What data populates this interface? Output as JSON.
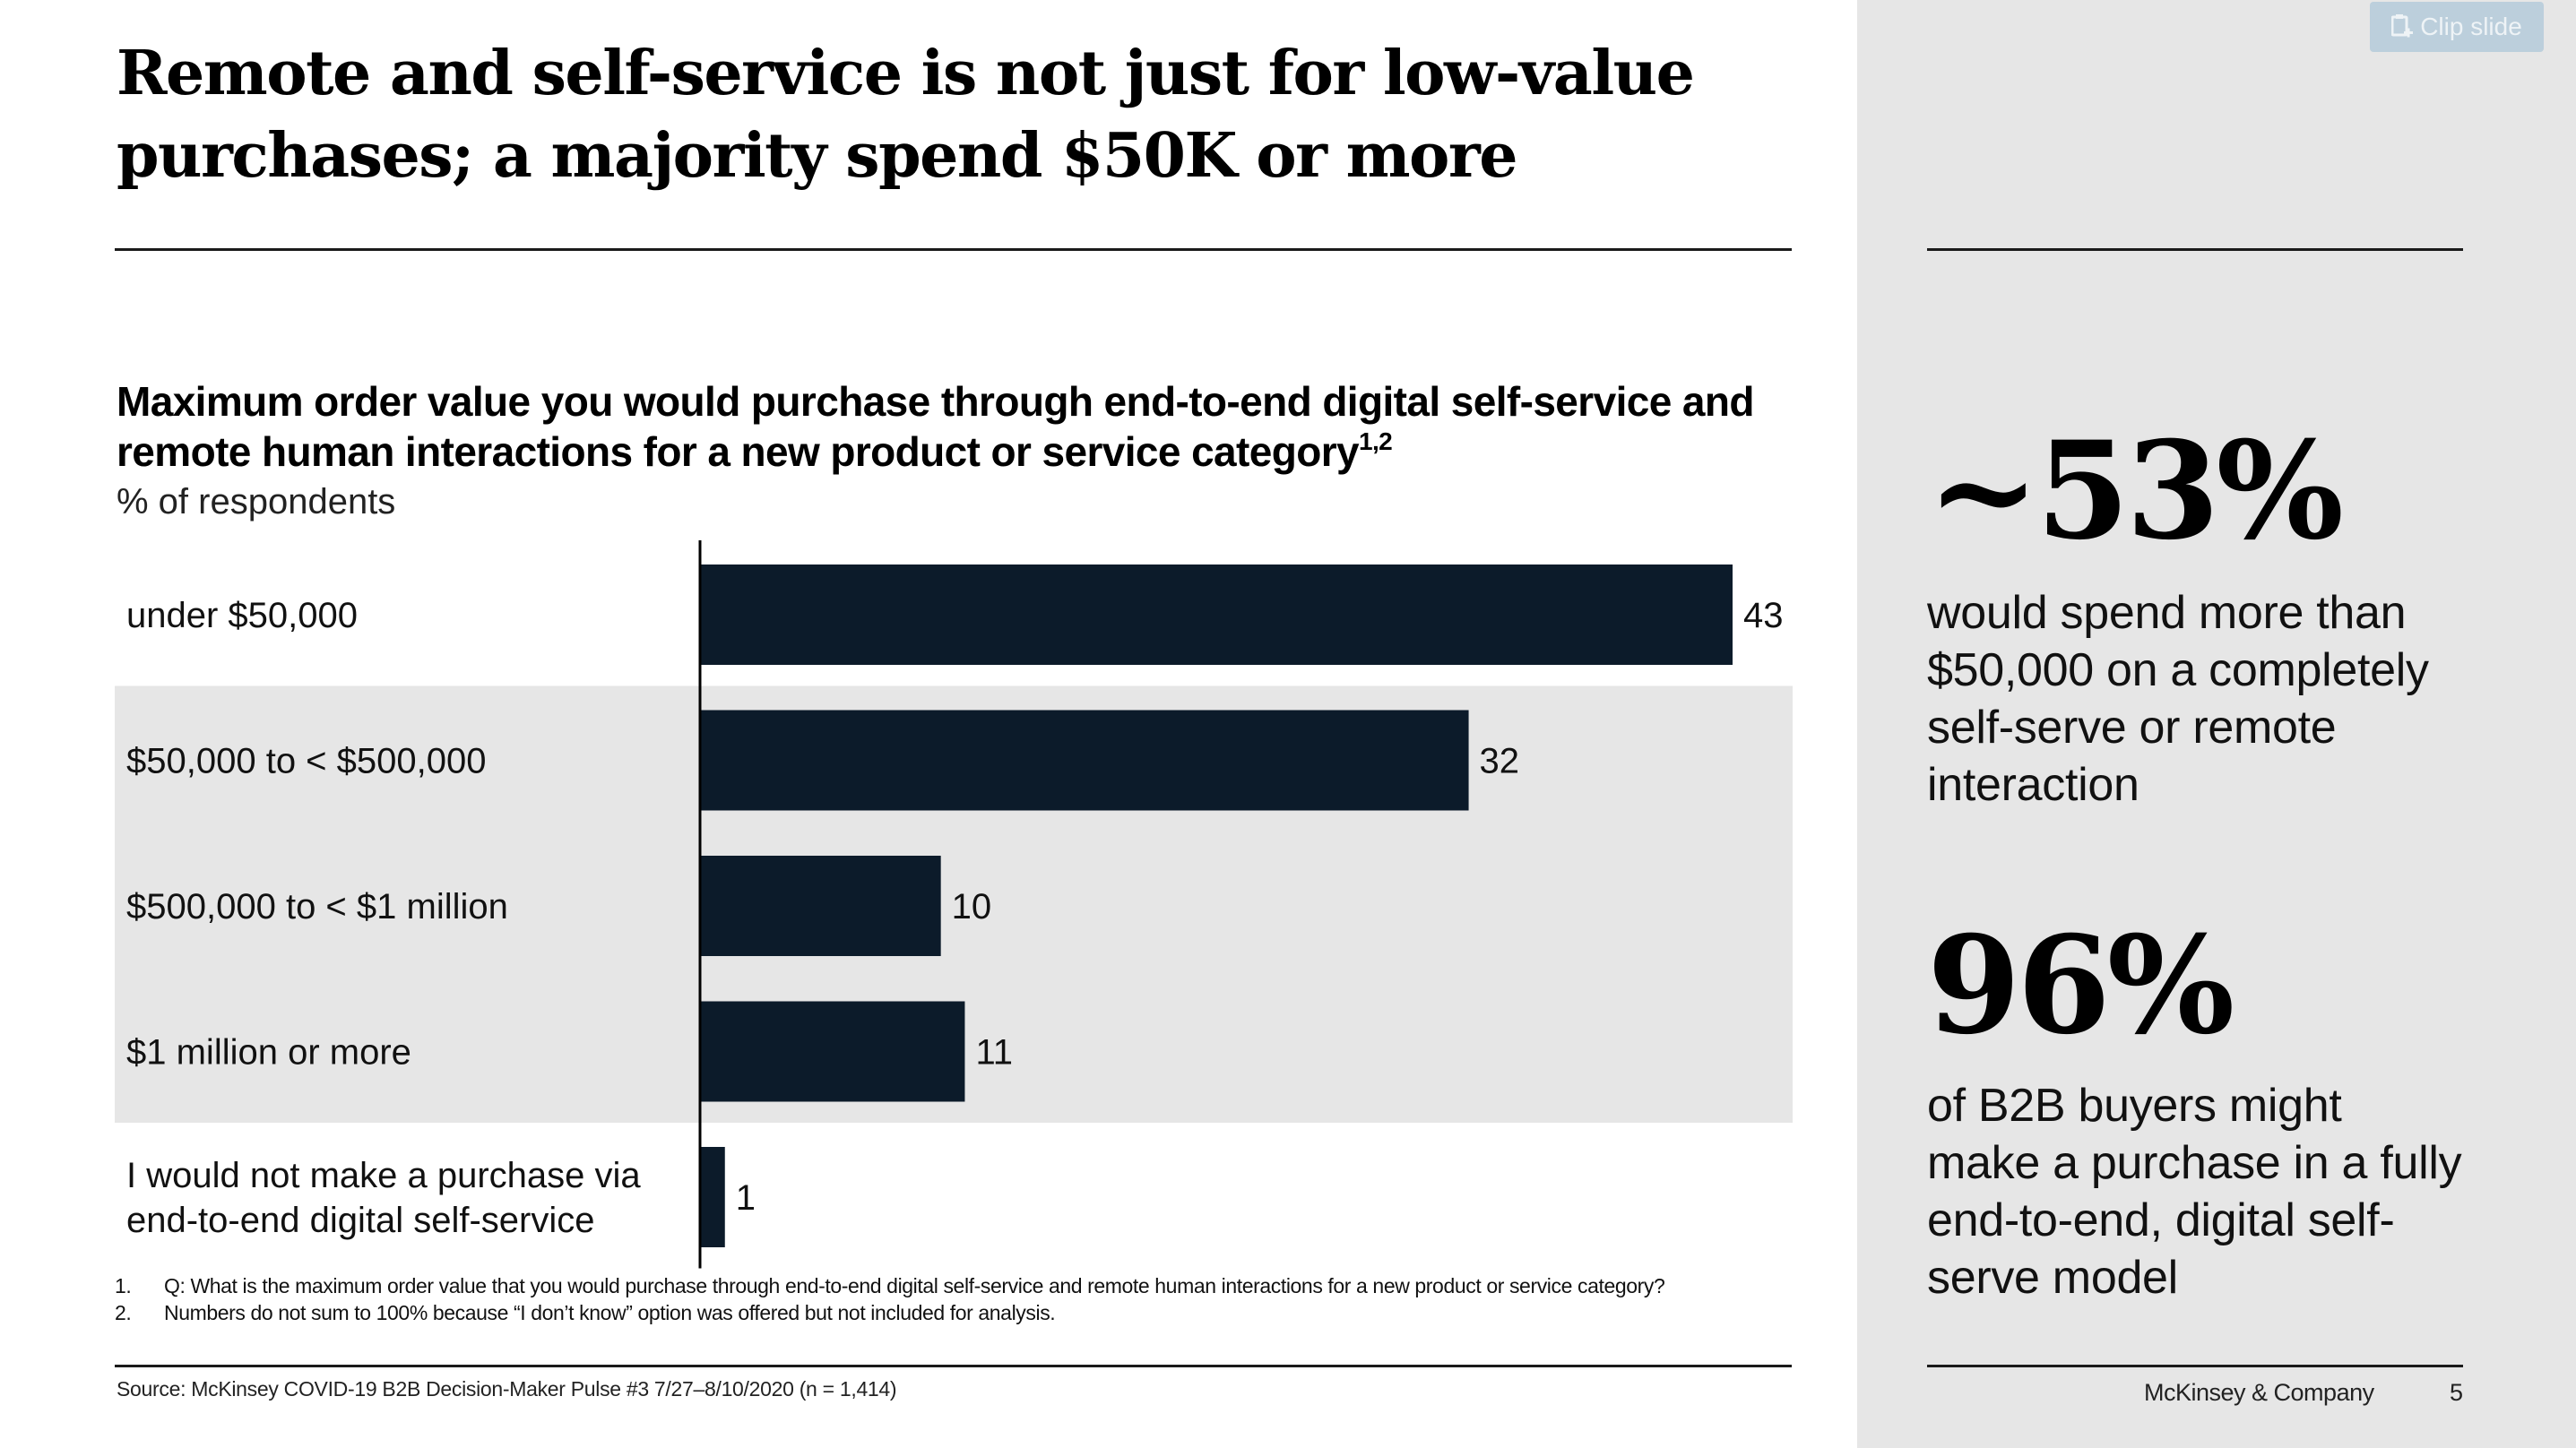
{
  "slide": {
    "title": "Remote and self-service is not just for low-value purchases; a majority spend $50K or more",
    "page_number": "5",
    "brand": "McKinsey & Company"
  },
  "clip_button": {
    "label": "Clip slide",
    "icon": "clipboard-plus-icon"
  },
  "chart": {
    "title": "Maximum order value you would purchase through end-to-end digital self-service and remote human interactions for a new product or service category",
    "title_superscript": "1,2",
    "unit": "% of respondents"
  },
  "chart_data": {
    "type": "bar",
    "orientation": "horizontal",
    "title": "Maximum order value you would purchase through end-to-end digital self-service and remote human interactions for a new product or service category",
    "xlabel": "",
    "ylabel": "% of respondents",
    "categories": [
      "under $50,000",
      "$50,000 to < $500,000",
      "$500,000 to < $1 million",
      "$1 million or more",
      "I would not make a purchase via end-to-end digital self-service"
    ],
    "category_lines": [
      [
        "under $50,000"
      ],
      [
        "$50,000 to < $500,000"
      ],
      [
        "$500,000 to < $1 million"
      ],
      [
        "$1 million or more"
      ],
      [
        "I would not make a purchase via",
        "end-to-end digital self-service"
      ]
    ],
    "values": [
      43,
      32,
      10,
      11,
      1
    ],
    "highlighted_categories": [
      1,
      2,
      3
    ],
    "xlim": [
      0,
      43
    ],
    "bar_color": "#0c1b2a",
    "highlight_band_color": "#e6e6e6",
    "grid": false,
    "legend": "none"
  },
  "footnotes": [
    {
      "num": "1.",
      "text": "Q: What is the maximum order value that you would purchase through end-to-end digital self-service and remote human interactions for a new product or service category?"
    },
    {
      "num": "2.",
      "text": "Numbers do not sum to 100% because “I don’t know” option was offered but not included for analysis."
    }
  ],
  "source": "Source: McKinsey COVID-19 B2B Decision-Maker Pulse #3 7/27–8/10/2020 (n = 1,414)",
  "callouts": [
    {
      "number": "~53%",
      "text": "would spend more than $50,000 on a completely self-serve or remote interaction"
    },
    {
      "number": "96%",
      "text": "of B2B buyers might make a purchase in a fully end-to-end, digital self-serve model"
    }
  ]
}
